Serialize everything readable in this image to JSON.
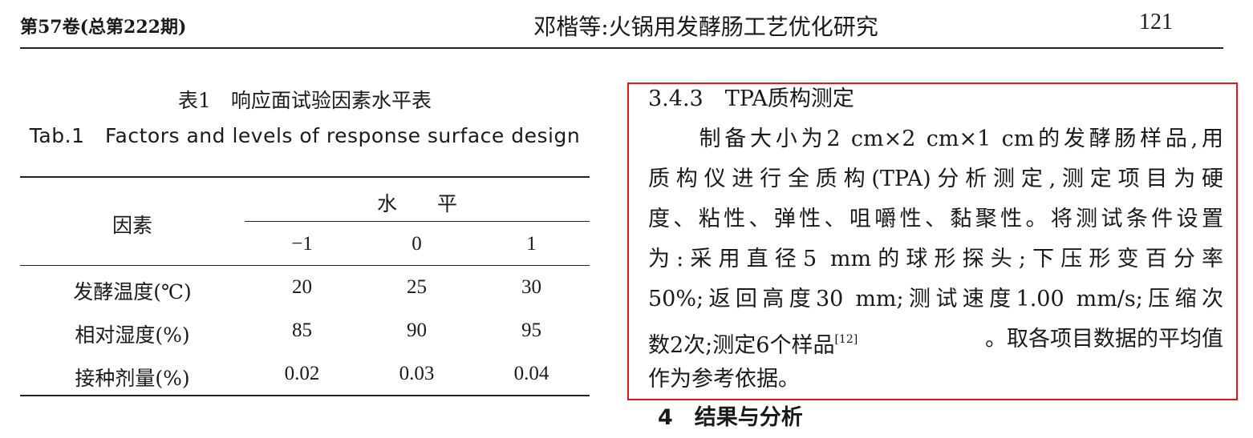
{
  "header": {
    "issue": "第57卷(总第222期)",
    "running_title": "邓楷等:火锅用发酵肠工艺优化研究",
    "page_number": "121"
  },
  "table": {
    "caption_cn": "表1　响应面试验因素水平表",
    "caption_en": "Tab.1　Factors and levels of response surface design",
    "factor_header": "因素",
    "level_header": "水　　平",
    "levels": [
      "−1",
      "0",
      "1"
    ],
    "rows": [
      {
        "factor": "发酵温度(℃)",
        "values": [
          "20",
          "25",
          "30"
        ]
      },
      {
        "factor": "相对湿度(%)",
        "values": [
          "85",
          "90",
          "95"
        ]
      },
      {
        "factor": "接种剂量(%)",
        "values": [
          "0.02",
          "0.03",
          "0.04"
        ]
      }
    ]
  },
  "section": {
    "heading": "3.4.3　TPA质构测定",
    "lines": [
      "　　制备大小为2 cm×2 cm×1 cm的发酵肠样品,用",
      "质构仪进行全质构(TPA)分析测定,测定项目为硬",
      "度、粘性、弹性、咀嚼性、黏聚性。将测试条件设置",
      "为:采用直径5 mm的球形探头;下压形变百分率",
      "50%;返回高度30 mm;测试速度1.00 mm/s;压缩次"
    ],
    "line6_before": "数2次;测定6个样品",
    "line6_ref": "[12]",
    "line6_after": "。取各项目数据的平均值",
    "last_line": "作为参考依据。",
    "next_heading_partial": "4　结果与分析"
  },
  "colors": {
    "highlight_box": "#e8141b"
  }
}
